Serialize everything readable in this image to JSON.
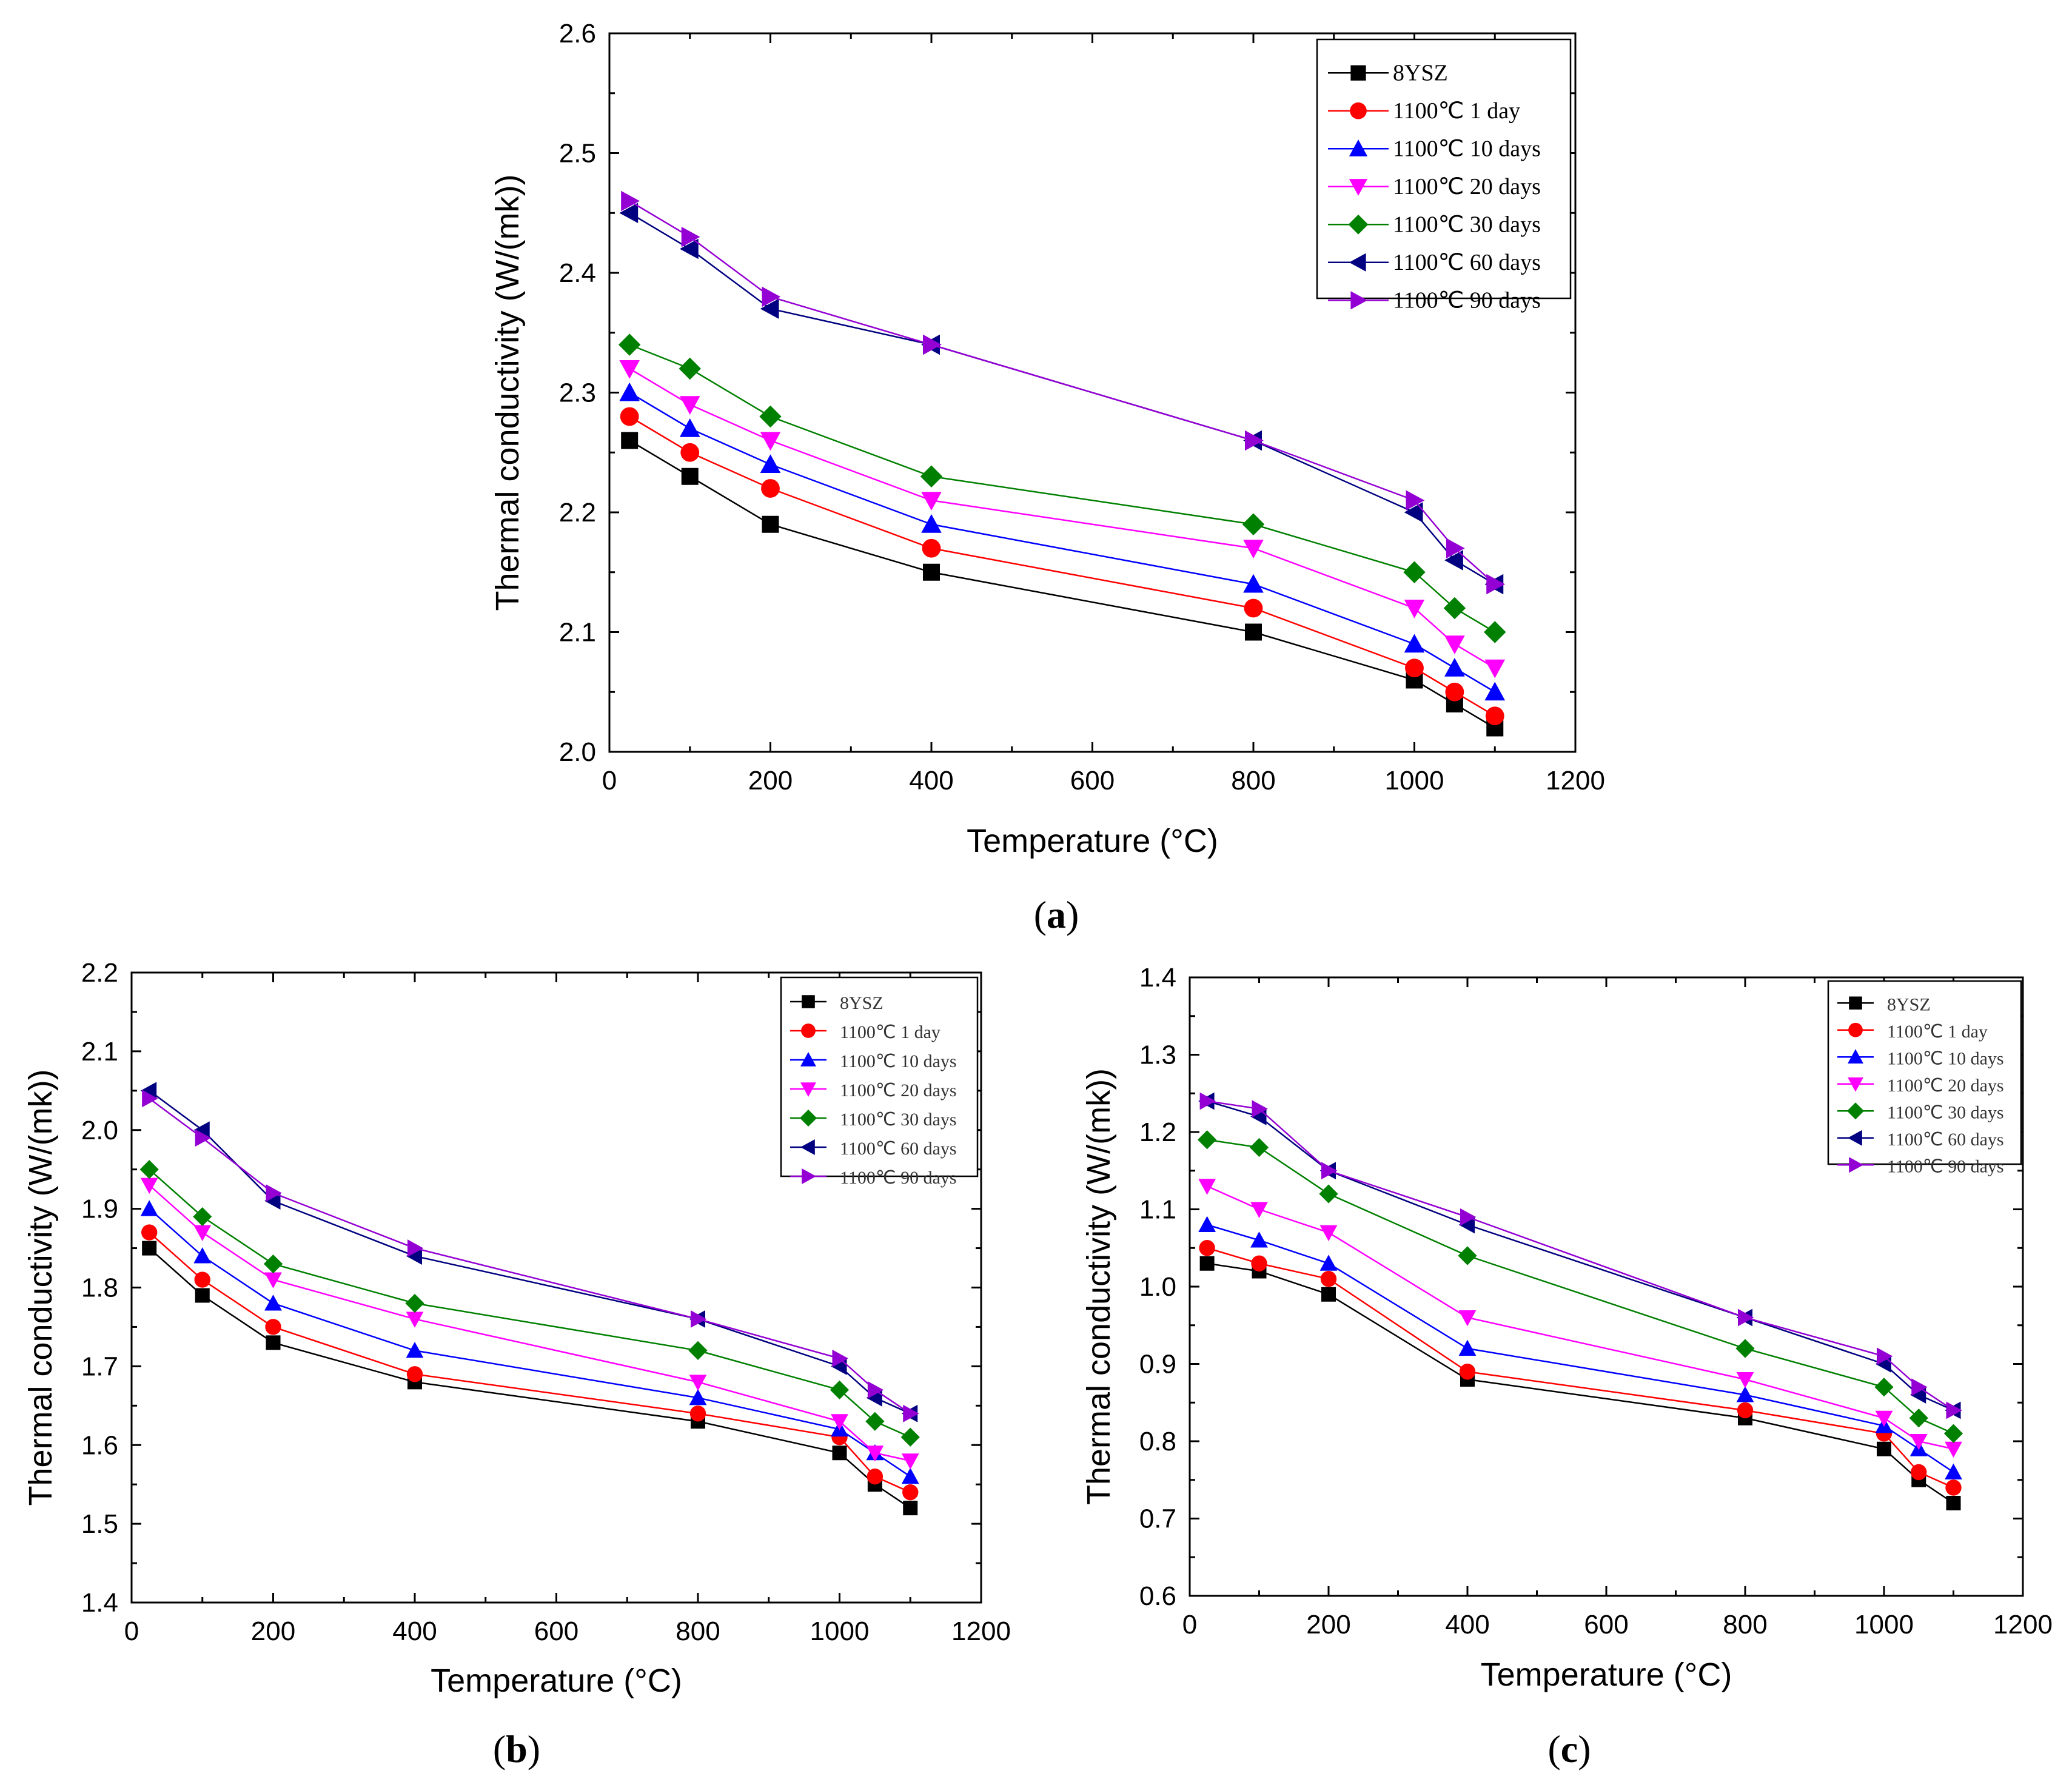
{
  "figure": {
    "panel_labels": [
      {
        "open": "(",
        "letter": "a",
        "close": ")"
      },
      {
        "open": "(",
        "letter": "b",
        "close": ")"
      },
      {
        "open": "(",
        "letter": "c",
        "close": ")"
      }
    ]
  },
  "chart_data": [
    {
      "type": "line",
      "id": "a",
      "title": "",
      "xlabel": "Temperature (°C)",
      "ylabel": "Thermal conductivity (W/(mk))",
      "xlim": [
        0,
        1200
      ],
      "ylim": [
        2.0,
        2.6
      ],
      "xticks": [
        "0",
        "200",
        "400",
        "600",
        "800",
        "1000",
        "1200"
      ],
      "yticks": [
        "2.0",
        "2.1",
        "2.2",
        "2.3",
        "2.4",
        "2.5",
        "2.6"
      ],
      "x": [
        25,
        100,
        200,
        400,
        800,
        1000,
        1050,
        1100
      ],
      "legend_position": "top-right",
      "series": [
        {
          "name": "8YSZ",
          "color": "#000000",
          "marker": "square",
          "values": [
            2.26,
            2.23,
            2.19,
            2.15,
            2.1,
            2.06,
            2.04,
            2.02
          ]
        },
        {
          "name": "1100℃ 1 day",
          "color": "#ff0000",
          "marker": "circle",
          "values": [
            2.28,
            2.25,
            2.22,
            2.17,
            2.12,
            2.07,
            2.05,
            2.03
          ]
        },
        {
          "name": "1100℃ 10 days",
          "color": "#0000ff",
          "marker": "triangle-up",
          "values": [
            2.3,
            2.27,
            2.24,
            2.19,
            2.14,
            2.09,
            2.07,
            2.05
          ]
        },
        {
          "name": "1100℃ 20 days",
          "color": "#ff00ff",
          "marker": "triangle-down",
          "values": [
            2.32,
            2.29,
            2.26,
            2.21,
            2.17,
            2.12,
            2.09,
            2.07
          ]
        },
        {
          "name": "1100℃ 30 days",
          "color": "#008000",
          "marker": "diamond",
          "values": [
            2.34,
            2.32,
            2.28,
            2.23,
            2.19,
            2.15,
            2.12,
            2.1
          ]
        },
        {
          "name": "1100℃ 60 days",
          "color": "#000080",
          "marker": "triangle-left",
          "values": [
            2.45,
            2.42,
            2.37,
            2.34,
            2.26,
            2.2,
            2.16,
            2.14
          ]
        },
        {
          "name": "1100℃ 90 days",
          "color": "#9400d3",
          "marker": "triangle-right",
          "values": [
            2.46,
            2.43,
            2.38,
            2.34,
            2.26,
            2.21,
            2.17,
            2.14
          ]
        }
      ]
    },
    {
      "type": "line",
      "id": "b",
      "title": "",
      "xlabel": "Temperature (°C)",
      "ylabel": "Thermal conductivity (W/(mk))",
      "xlim": [
        0,
        1200
      ],
      "ylim": [
        1.4,
        2.2
      ],
      "xticks": [
        "0",
        "200",
        "400",
        "600",
        "800",
        "1000",
        "1200"
      ],
      "yticks": [
        "1.4",
        "1.5",
        "1.6",
        "1.7",
        "1.8",
        "1.9",
        "2.0",
        "2.1",
        "2.2"
      ],
      "x": [
        25,
        100,
        200,
        400,
        800,
        1000,
        1050,
        1100
      ],
      "legend_position": "top-right",
      "series": [
        {
          "name": "8YSZ",
          "color": "#000000",
          "marker": "square",
          "values": [
            1.85,
            1.79,
            1.73,
            1.68,
            1.63,
            1.59,
            1.55,
            1.52
          ]
        },
        {
          "name": "1100℃ 1 day",
          "color": "#ff0000",
          "marker": "circle",
          "values": [
            1.87,
            1.81,
            1.75,
            1.69,
            1.64,
            1.61,
            1.56,
            1.54
          ]
        },
        {
          "name": "1100℃ 10 days",
          "color": "#0000ff",
          "marker": "triangle-up",
          "values": [
            1.9,
            1.84,
            1.78,
            1.72,
            1.66,
            1.62,
            1.59,
            1.56
          ]
        },
        {
          "name": "1100℃ 20 days",
          "color": "#ff00ff",
          "marker": "triangle-down",
          "values": [
            1.93,
            1.87,
            1.81,
            1.76,
            1.68,
            1.63,
            1.59,
            1.58
          ]
        },
        {
          "name": "1100℃ 30 days",
          "color": "#008000",
          "marker": "diamond",
          "values": [
            1.95,
            1.89,
            1.83,
            1.78,
            1.72,
            1.67,
            1.63,
            1.61
          ]
        },
        {
          "name": "1100℃ 60 days",
          "color": "#000080",
          "marker": "triangle-left",
          "values": [
            2.05,
            2.0,
            1.91,
            1.84,
            1.76,
            1.7,
            1.66,
            1.64
          ]
        },
        {
          "name": "1100℃ 90 days",
          "color": "#9400d3",
          "marker": "triangle-right",
          "values": [
            2.04,
            1.99,
            1.92,
            1.85,
            1.76,
            1.71,
            1.67,
            1.64
          ]
        }
      ]
    },
    {
      "type": "line",
      "id": "c",
      "title": "",
      "xlabel": "Temperature (°C)",
      "ylabel": "Thermal conductivity (W/(mk))",
      "xlim": [
        0,
        1200
      ],
      "ylim": [
        0.6,
        1.4
      ],
      "xticks": [
        "0",
        "200",
        "400",
        "600",
        "800",
        "1000",
        "1200"
      ],
      "yticks": [
        "0.6",
        "0.7",
        "0.8",
        "0.9",
        "1.0",
        "1.1",
        "1.2",
        "1.3",
        "1.4"
      ],
      "x": [
        25,
        100,
        200,
        400,
        800,
        1000,
        1050,
        1100
      ],
      "legend_position": "top-right",
      "series": [
        {
          "name": "8YSZ",
          "color": "#000000",
          "marker": "square",
          "values": [
            1.03,
            1.02,
            0.99,
            0.88,
            0.83,
            0.79,
            0.75,
            0.72
          ]
        },
        {
          "name": "1100℃ 1 day",
          "color": "#ff0000",
          "marker": "circle",
          "values": [
            1.05,
            1.03,
            1.01,
            0.89,
            0.84,
            0.81,
            0.76,
            0.74
          ]
        },
        {
          "name": "1100℃ 10 days",
          "color": "#0000ff",
          "marker": "triangle-up",
          "values": [
            1.08,
            1.06,
            1.03,
            0.92,
            0.86,
            0.82,
            0.79,
            0.76
          ]
        },
        {
          "name": "1100℃ 20 days",
          "color": "#ff00ff",
          "marker": "triangle-down",
          "values": [
            1.13,
            1.1,
            1.07,
            0.96,
            0.88,
            0.83,
            0.8,
            0.79
          ]
        },
        {
          "name": "1100℃ 30 days",
          "color": "#008000",
          "marker": "diamond",
          "values": [
            1.19,
            1.18,
            1.12,
            1.04,
            0.92,
            0.87,
            0.83,
            0.81
          ]
        },
        {
          "name": "1100℃ 60 days",
          "color": "#000080",
          "marker": "triangle-left",
          "values": [
            1.24,
            1.22,
            1.15,
            1.08,
            0.96,
            0.9,
            0.86,
            0.84
          ]
        },
        {
          "name": "1100℃ 90 days",
          "color": "#9400d3",
          "marker": "triangle-right",
          "values": [
            1.24,
            1.23,
            1.15,
            1.09,
            0.96,
            0.91,
            0.87,
            0.84
          ]
        }
      ]
    }
  ]
}
